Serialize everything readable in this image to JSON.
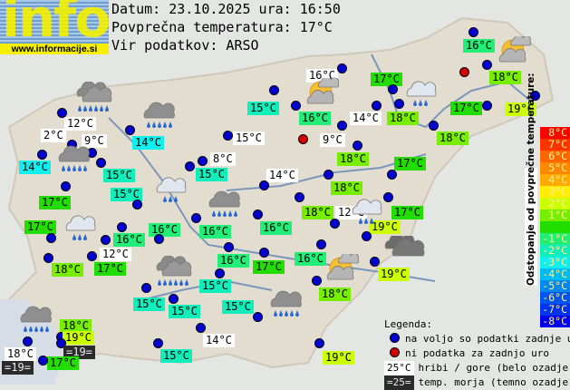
{
  "logo": {
    "word": "info",
    "site": "www.informacije.si"
  },
  "header": {
    "date_line": "Datum: 23.10.2025 ura: 16:50",
    "avg_line": "Povprečna temperatura: 17°C",
    "source_line": "Vir podatkov: ARSO"
  },
  "palette": {
    "19": "#ccff00",
    "18": "#77ee00",
    "17": "#22dd00",
    "16": "#22ee77",
    "15": "#11eebb",
    "14": "#11eeee",
    "hill": "#ffffff",
    "sea": "#2b2b2b",
    "station_ok": "#0000d0",
    "station_missing": "#d00000"
  },
  "stations": [
    {
      "t": "16°C",
      "k": "16"
    },
    {
      "t": "16°C",
      "k": "hill"
    },
    {
      "t": "17°C",
      "k": "17"
    },
    {
      "t": "18°C",
      "k": "18"
    },
    {
      "t": "15°C",
      "k": "15"
    },
    {
      "t": "16°C",
      "k": "16"
    },
    {
      "t": "14°C",
      "k": "hill"
    },
    {
      "t": "18°C",
      "k": "18"
    },
    {
      "t": "17°C",
      "k": "17"
    },
    {
      "t": "19°C",
      "k": "19"
    },
    {
      "t": "12°C",
      "k": "hill"
    },
    {
      "t": "2°C",
      "k": "hill"
    },
    {
      "t": "9°C",
      "k": "hill"
    },
    {
      "t": "14°C",
      "k": "14"
    },
    {
      "t": "15°C",
      "k": "hill"
    },
    {
      "t": "9°C",
      "k": "hill"
    },
    {
      "t": "18°C",
      "k": "18"
    },
    {
      "t": "14°C",
      "k": "14"
    },
    {
      "t": "15°C",
      "k": "15"
    },
    {
      "t": "8°C",
      "k": "hill"
    },
    {
      "t": "15°C",
      "k": "15"
    },
    {
      "t": "18°C",
      "k": "18"
    },
    {
      "t": "17°C",
      "k": "17"
    },
    {
      "t": "14°C",
      "k": "hill"
    },
    {
      "t": "15°C",
      "k": "15"
    },
    {
      "t": "17°C",
      "k": "17"
    },
    {
      "t": "18°C",
      "k": "18"
    },
    {
      "t": "16°C",
      "k": "16"
    },
    {
      "t": "16°C",
      "k": "16"
    },
    {
      "t": "16°C",
      "k": "16"
    },
    {
      "t": "18°C",
      "k": "18"
    },
    {
      "t": "12°C",
      "k": "hill"
    },
    {
      "t": "17°C",
      "k": "17"
    },
    {
      "t": "19°C",
      "k": "19"
    },
    {
      "t": "17°C",
      "k": "17"
    },
    {
      "t": "16°C",
      "k": "16"
    },
    {
      "t": "12°C",
      "k": "hill"
    },
    {
      "t": "18°C",
      "k": "18"
    },
    {
      "t": "17°C",
      "k": "17"
    },
    {
      "t": "16°C",
      "k": "16"
    },
    {
      "t": "17°C",
      "k": "17"
    },
    {
      "t": "15°C",
      "k": "15"
    },
    {
      "t": "15°C",
      "k": "15"
    },
    {
      "t": "15°C",
      "k": "15"
    },
    {
      "t": "15°C",
      "k": "15"
    },
    {
      "t": "18°C",
      "k": "18"
    },
    {
      "t": "19°C",
      "k": "19"
    },
    {
      "t": "=19=",
      "k": "sea"
    },
    {
      "t": "18°C",
      "k": "hill"
    },
    {
      "t": "=19=",
      "k": "sea"
    },
    {
      "t": "17°C",
      "k": "17"
    },
    {
      "t": "14°C",
      "k": "hill"
    },
    {
      "t": "15°C",
      "k": "15"
    },
    {
      "t": "16°C",
      "k": "16"
    },
    {
      "t": "18°C",
      "k": "18"
    },
    {
      "t": "19°C",
      "k": "19"
    },
    {
      "t": "19°C",
      "k": "19"
    },
    {
      "t": "16°C",
      "k": "16"
    }
  ],
  "missing_stations": 2,
  "weather_icons": [
    "heavy-rain",
    "rain",
    "rain",
    "light-rain",
    "rain",
    "light-rain",
    "heavy-rain",
    "rain",
    "rain",
    "sun-cloud",
    "light-rain",
    "sun-cloud",
    "light-rain",
    "dark-cloud",
    "sun-cloud"
  ],
  "scale": {
    "title": "Odstopanje od povprečne temperature:",
    "steps": [
      {
        "label": "8°C",
        "color": "#ff0000"
      },
      {
        "label": "7°C",
        "color": "#ff3300"
      },
      {
        "label": "6°C",
        "color": "#ff6600"
      },
      {
        "label": "5°C",
        "color": "#ff8800"
      },
      {
        "label": "4°C",
        "color": "#ffaa00"
      },
      {
        "label": "3°C",
        "color": "#ffee00"
      },
      {
        "label": "2°C",
        "color": "#ccff00"
      },
      {
        "label": "1°C",
        "color": "#77ee00"
      },
      {
        "label": "",
        "color": "#22dd00"
      },
      {
        "label": "-1°C",
        "color": "#22ee77"
      },
      {
        "label": "-2°C",
        "color": "#11eebb"
      },
      {
        "label": "-3°C",
        "color": "#11eeee"
      },
      {
        "label": "-4°C",
        "color": "#00bbee"
      },
      {
        "label": "-5°C",
        "color": "#0088ee"
      },
      {
        "label": "-6°C",
        "color": "#0055ee"
      },
      {
        "label": "-7°C",
        "color": "#0033ee"
      },
      {
        "label": "-8°C",
        "color": "#0000ee"
      }
    ]
  },
  "legend": {
    "title": "Legenda:",
    "available": "na voljo so podatki zadnje ure",
    "missing": "ni podatka za zadnjo uro",
    "hill_sample": "25°C",
    "hill_text": "hribi / gore (belo ozadje)",
    "sea_sample": "=25=",
    "sea_text": "temp. morja (temno ozadje)"
  }
}
